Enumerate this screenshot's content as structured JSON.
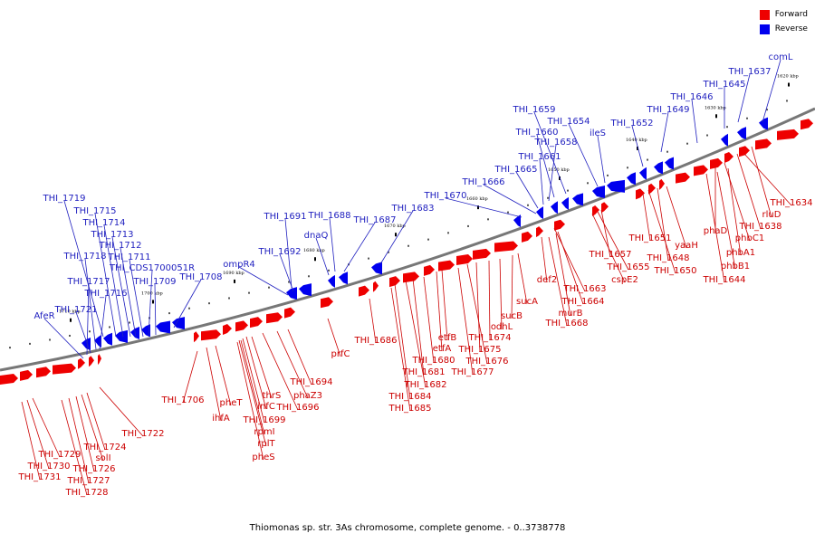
{
  "caption": "Thiomonas sp. str. 3As chromosome, complete genome. - 0..3738778",
  "legend": [
    {
      "label": "Forward",
      "color": "#ee0000"
    },
    {
      "label": "Reverse",
      "color": "#0000ee"
    }
  ],
  "colors": {
    "forward": "#ee0000",
    "reverse": "#0000ee",
    "forward_label": "#cc0000",
    "reverse_label": "#1f1fbf",
    "axis": "#777777"
  },
  "scale_ticks": [
    "1620 kbp",
    "1630 kbp",
    "1640 kbp",
    "1650 kbp",
    "1660 kbp",
    "1670 kbp",
    "1680 kbp",
    "1690 kbp",
    "1700 kbp",
    "1710 kbp"
  ],
  "reverse_genes": [
    "comL",
    "THI_1637",
    "THI_1645",
    "THI_1646",
    "THI_1649",
    "THI_1652",
    "ileS",
    "THI_1654",
    "THI_1659",
    "THI_1660",
    "THI_1658",
    "THI_1661",
    "THI_1665",
    "THI_1666",
    "THI_1670",
    "THI_1683",
    "THI_1687",
    "THI_1688",
    "dnaQ",
    "THI_1691",
    "THI_1692",
    "ompR4",
    "THI_1708",
    "THI_1719",
    "THI_1715",
    "THI_1714",
    "THI_1713",
    "THI_1712",
    "THI_1711",
    "THI_1718",
    "THI_CDS1700051R",
    "THI_1717",
    "THI_1709",
    "THI_1716",
    "THI_1721",
    "AfeR"
  ],
  "forward_genes": [
    "THI_1634",
    "rluD",
    "THI_1638",
    "phbC1",
    "phaD",
    "phbA1",
    "phbB1",
    "THI_1644",
    "yaaH",
    "THI_1648",
    "THI_1650",
    "THI_1651",
    "THI_1657",
    "THI_1655",
    "cspE2",
    "def2",
    "THI_1663",
    "THI_1664",
    "murB",
    "THI_1668",
    "sucA",
    "sucB",
    "odhL",
    "THI_1674",
    "THI_1675",
    "THI_1676",
    "THI_1677",
    "etfB",
    "etfA",
    "THI_1680",
    "THI_1681",
    "THI_1682",
    "THI_1684",
    "THI_1685",
    "THI_1686",
    "prfC",
    "THI_1694",
    "phaZ3",
    "THI_1696",
    "thrS",
    "infC",
    "THI_1699",
    "rpmI",
    "rplT",
    "pheS",
    "pheT",
    "ihfA",
    "THI_1706",
    "THI_1722",
    "THI_1724",
    "solI",
    "THI_1726",
    "THI_1727",
    "THI_1728",
    "THI_1729",
    "THI_1730",
    "THI_1731"
  ]
}
